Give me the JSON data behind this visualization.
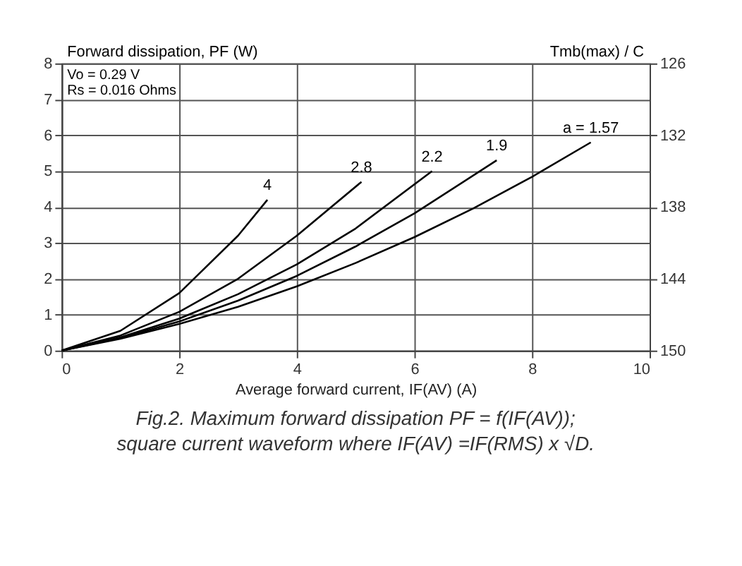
{
  "chart_data": {
    "type": "line",
    "ylabel": "Forward dissipation, PF (W)",
    "y2label": "Tmb(max) / C",
    "xlabel": "Average forward current, IF(AV) (A)",
    "xlim": [
      0,
      10
    ],
    "xticks": [
      0,
      2,
      4,
      6,
      8,
      10
    ],
    "ylim": [
      0,
      8
    ],
    "yticks": [
      0,
      1,
      2,
      3,
      4,
      5,
      6,
      7,
      8
    ],
    "y2lim": [
      150,
      126
    ],
    "y2ticks": [
      150,
      144,
      138,
      132,
      126
    ],
    "grid": true,
    "marker": "none",
    "line_style": "solid",
    "annotations": [
      "Vo = 0.29 V",
      "Rs = 0.016 Ohms",
      "Fig.2.   Maximum forward dissipation PF = f(IF(AV));",
      "square current waveform where IF(AV) =IF(RMS) x √D."
    ],
    "series": [
      {
        "name": "4",
        "color": "#000000",
        "x": [
          0,
          1,
          2,
          3,
          3.5
        ],
        "values": [
          0,
          0.55,
          1.6,
          3.2,
          4.2
        ]
      },
      {
        "name": "2.8",
        "color": "#000000",
        "x": [
          0,
          1,
          2,
          3,
          4,
          5.1
        ],
        "values": [
          0,
          0.42,
          1.08,
          2.0,
          3.2,
          4.7
        ]
      },
      {
        "name": "2.2",
        "color": "#000000",
        "x": [
          0,
          1,
          2,
          3,
          4,
          5,
          6.3
        ],
        "values": [
          0,
          0.37,
          0.89,
          1.57,
          2.4,
          3.4,
          5.0
        ]
      },
      {
        "name": "1.9",
        "color": "#000000",
        "x": [
          0,
          1,
          2,
          3,
          4,
          5,
          6,
          7.4
        ],
        "values": [
          0,
          0.35,
          0.81,
          1.39,
          2.08,
          2.9,
          3.82,
          5.3
        ]
      },
      {
        "name": "a = 1.57",
        "color": "#000000",
        "x": [
          0,
          1,
          2,
          3,
          4,
          5,
          6,
          7,
          8,
          9
        ],
        "values": [
          0,
          0.33,
          0.74,
          1.22,
          1.79,
          2.44,
          3.16,
          3.96,
          4.84,
          5.8
        ]
      }
    ]
  }
}
